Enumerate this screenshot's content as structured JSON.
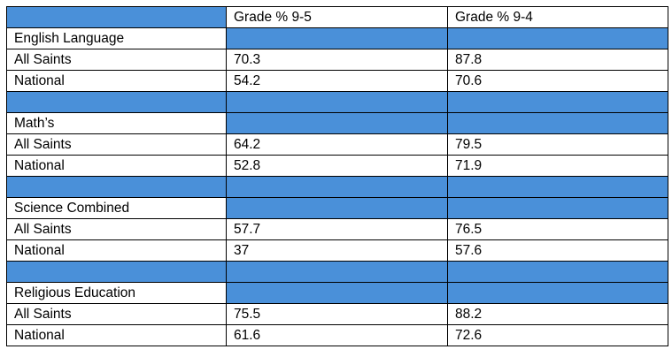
{
  "header": {
    "col1": "",
    "col2": "Grade % 9-5",
    "col3": "Grade % 9-4"
  },
  "subjects": [
    {
      "name": "English Language",
      "rows": [
        {
          "label": "All Saints",
          "g95": "70.3",
          "g94": "87.8"
        },
        {
          "label": "National",
          "g95": "54.2",
          "g94": "70.6"
        }
      ]
    },
    {
      "name": "Math’s",
      "rows": [
        {
          "label": "All Saints",
          "g95": "64.2",
          "g94": "79.5"
        },
        {
          "label": "National",
          "g95": "52.8",
          "g94": "71.9"
        }
      ]
    },
    {
      "name": "Science Combined",
      "rows": [
        {
          "label": "All Saints",
          "g95": "57.7",
          "g94": "76.5"
        },
        {
          "label": "National",
          "g95": "37",
          "g94": "57.6"
        }
      ]
    },
    {
      "name": "Religious Education",
      "rows": [
        {
          "label": "All Saints",
          "g95": "75.5",
          "g94": "88.2"
        },
        {
          "label": "National",
          "g95": "61.6",
          "g94": "72.6"
        }
      ]
    }
  ],
  "colors": {
    "header_fill": "#4a90d9",
    "border": "#000000"
  }
}
